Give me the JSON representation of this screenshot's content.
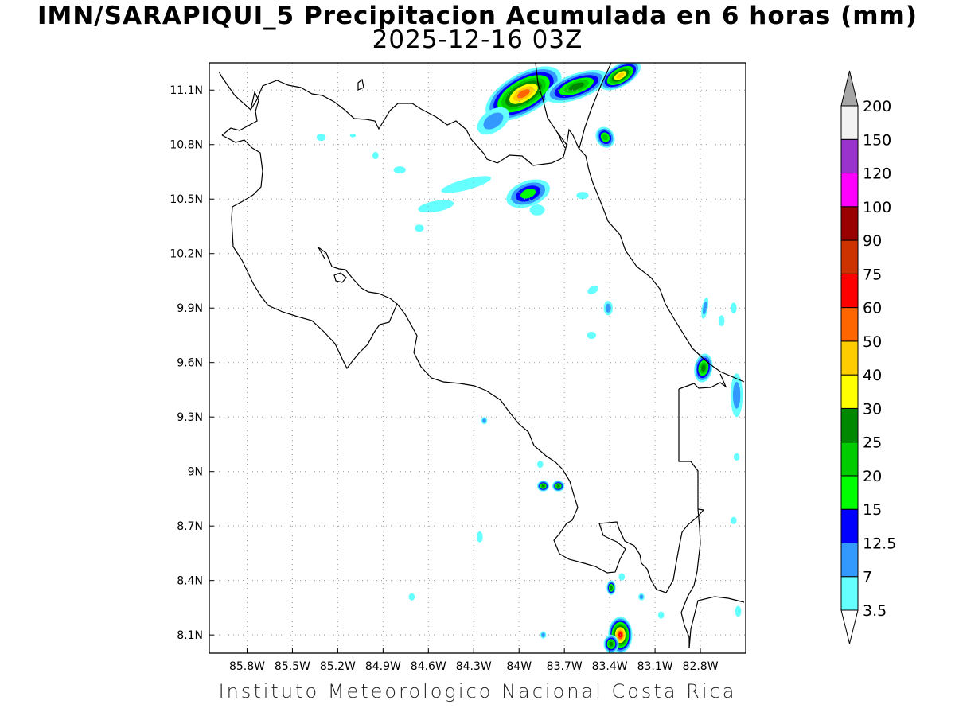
{
  "header": {
    "title_line1": "IMN/SARAPIQUI_5 Precipitacion Acumulada en 6 horas (mm)",
    "title_line2": "2025-12-16 03Z"
  },
  "footer": {
    "credit": "Instituto Meteorologico Nacional Costa Rica"
  },
  "map": {
    "lon_range": [
      -86.05,
      -82.5
    ],
    "lat_range": [
      8.0,
      11.25
    ],
    "lon_ticks": [
      {
        "value": -85.8,
        "label": "85.8W"
      },
      {
        "value": -85.5,
        "label": "85.5W"
      },
      {
        "value": -85.2,
        "label": "85.2W"
      },
      {
        "value": -84.9,
        "label": "84.9W"
      },
      {
        "value": -84.6,
        "label": "84.6W"
      },
      {
        "value": -84.3,
        "label": "84.3W"
      },
      {
        "value": -84.0,
        "label": "84W"
      },
      {
        "value": -83.7,
        "label": "83.7W"
      },
      {
        "value": -83.4,
        "label": "83.4W"
      },
      {
        "value": -83.1,
        "label": "83.1W"
      },
      {
        "value": -82.8,
        "label": "82.8W"
      }
    ],
    "lat_ticks": [
      {
        "value": 11.1,
        "label": "11.1N"
      },
      {
        "value": 10.8,
        "label": "10.8N"
      },
      {
        "value": 10.5,
        "label": "10.5N"
      },
      {
        "value": 10.2,
        "label": "10.2N"
      },
      {
        "value": 9.9,
        "label": "9.9N"
      },
      {
        "value": 9.6,
        "label": "9.6N"
      },
      {
        "value": 9.3,
        "label": "9.3N"
      },
      {
        "value": 9.0,
        "label": "9N"
      },
      {
        "value": 8.7,
        "label": "8.7N"
      },
      {
        "value": 8.4,
        "label": "8.4N"
      },
      {
        "value": 8.1,
        "label": "8.1N"
      }
    ],
    "grid": "dotted"
  },
  "legend": {
    "levels": [
      {
        "label": "3.5",
        "color": "#66ffff"
      },
      {
        "label": "7",
        "color": "#3399ff"
      },
      {
        "label": "12.5",
        "color": "#0000ff"
      },
      {
        "label": "15",
        "color": "#00ff00"
      },
      {
        "label": "20",
        "color": "#00cc00"
      },
      {
        "label": "25",
        "color": "#008800"
      },
      {
        "label": "30",
        "color": "#ffff00"
      },
      {
        "label": "40",
        "color": "#ffcc00"
      },
      {
        "label": "50",
        "color": "#ff6600"
      },
      {
        "label": "60",
        "color": "#ff0000"
      },
      {
        "label": "75",
        "color": "#cc3300"
      },
      {
        "label": "90",
        "color": "#990000"
      },
      {
        "label": "100",
        "color": "#ff00ff"
      },
      {
        "label": "120",
        "color": "#9933cc"
      },
      {
        "label": "150",
        "color": "#f2f2f2"
      },
      {
        "label": "200",
        "color": "#a6a6a6"
      }
    ]
  },
  "precip_cells": [
    {
      "lon": -83.97,
      "lat": 11.08,
      "rx": 0.28,
      "ry": 0.11,
      "rot": -30,
      "level": 8
    },
    {
      "lon": -83.62,
      "lat": 11.12,
      "rx": 0.22,
      "ry": 0.07,
      "rot": -20,
      "level": 5
    },
    {
      "lon": -83.33,
      "lat": 11.18,
      "rx": 0.15,
      "ry": 0.06,
      "rot": -30,
      "level": 7
    },
    {
      "lon": -84.17,
      "lat": 10.93,
      "rx": 0.12,
      "ry": 0.06,
      "rot": -35,
      "level": 1
    },
    {
      "lon": -83.43,
      "lat": 10.84,
      "rx": 0.06,
      "ry": 0.06,
      "rot": -30,
      "level": 4
    },
    {
      "lon": -83.94,
      "lat": 10.53,
      "rx": 0.15,
      "ry": 0.07,
      "rot": -20,
      "level": 3
    },
    {
      "lon": -84.35,
      "lat": 10.58,
      "rx": 0.17,
      "ry": 0.03,
      "rot": -15,
      "level": 0
    },
    {
      "lon": -84.55,
      "lat": 10.46,
      "rx": 0.12,
      "ry": 0.03,
      "rot": -10,
      "level": 0
    },
    {
      "lon": -83.88,
      "lat": 10.44,
      "rx": 0.05,
      "ry": 0.03,
      "rot": 0,
      "level": 0
    },
    {
      "lon": -83.41,
      "lat": 9.9,
      "rx": 0.03,
      "ry": 0.04,
      "rot": 0,
      "level": 1
    },
    {
      "lon": -83.51,
      "lat": 10.0,
      "rx": 0.04,
      "ry": 0.02,
      "rot": -30,
      "level": 0
    },
    {
      "lon": -82.78,
      "lat": 9.57,
      "rx": 0.06,
      "ry": 0.08,
      "rot": 10,
      "level": 5
    },
    {
      "lon": -82.56,
      "lat": 9.42,
      "rx": 0.04,
      "ry": 0.12,
      "rot": 0,
      "level": 1
    },
    {
      "lon": -82.77,
      "lat": 9.9,
      "rx": 0.02,
      "ry": 0.06,
      "rot": 10,
      "level": 1
    },
    {
      "lon": -83.84,
      "lat": 8.92,
      "rx": 0.04,
      "ry": 0.03,
      "rot": 0,
      "level": 5
    },
    {
      "lon": -83.74,
      "lat": 8.92,
      "rx": 0.04,
      "ry": 0.03,
      "rot": 0,
      "level": 5
    },
    {
      "lon": -83.86,
      "lat": 9.04,
      "rx": 0.02,
      "ry": 0.02,
      "rot": 0,
      "level": 0
    },
    {
      "lon": -84.23,
      "lat": 9.28,
      "rx": 0.02,
      "ry": 0.02,
      "rot": 0,
      "level": 1
    },
    {
      "lon": -84.26,
      "lat": 8.64,
      "rx": 0.02,
      "ry": 0.03,
      "rot": 0,
      "level": 0
    },
    {
      "lon": -84.71,
      "lat": 8.31,
      "rx": 0.02,
      "ry": 0.02,
      "rot": 0,
      "level": 0
    },
    {
      "lon": -83.39,
      "lat": 8.36,
      "rx": 0.03,
      "ry": 0.04,
      "rot": 0,
      "level": 5
    },
    {
      "lon": -83.32,
      "lat": 8.42,
      "rx": 0.02,
      "ry": 0.02,
      "rot": 0,
      "level": 0
    },
    {
      "lon": -83.19,
      "lat": 8.31,
      "rx": 0.02,
      "ry": 0.02,
      "rot": 0,
      "level": 1
    },
    {
      "lon": -83.33,
      "lat": 8.1,
      "rx": 0.08,
      "ry": 0.1,
      "rot": 0,
      "level": 9
    },
    {
      "lon": -83.39,
      "lat": 8.05,
      "rx": 0.05,
      "ry": 0.05,
      "rot": 0,
      "level": 5
    },
    {
      "lon": -83.84,
      "lat": 8.1,
      "rx": 0.02,
      "ry": 0.02,
      "rot": 0,
      "level": 1
    },
    {
      "lon": -83.06,
      "lat": 8.21,
      "rx": 0.02,
      "ry": 0.02,
      "rot": 0,
      "level": 0
    },
    {
      "lon": -82.55,
      "lat": 8.23,
      "rx": 0.02,
      "ry": 0.03,
      "rot": 0,
      "level": 0
    },
    {
      "lon": -82.58,
      "lat": 8.73,
      "rx": 0.02,
      "ry": 0.02,
      "rot": 0,
      "level": 0
    },
    {
      "lon": -82.66,
      "lat": 9.83,
      "rx": 0.02,
      "ry": 0.03,
      "rot": 0,
      "level": 0
    },
    {
      "lon": -82.58,
      "lat": 9.9,
      "rx": 0.02,
      "ry": 0.03,
      "rot": 0,
      "level": 0
    },
    {
      "lon": -85.31,
      "lat": 10.84,
      "rx": 0.03,
      "ry": 0.02,
      "rot": 0,
      "level": 0
    },
    {
      "lon": -85.1,
      "lat": 10.85,
      "rx": 0.02,
      "ry": 0.01,
      "rot": 0,
      "level": 0
    },
    {
      "lon": -84.95,
      "lat": 10.74,
      "rx": 0.02,
      "ry": 0.02,
      "rot": 0,
      "level": 0
    },
    {
      "lon": -84.79,
      "lat": 10.66,
      "rx": 0.04,
      "ry": 0.02,
      "rot": 0,
      "level": 0
    },
    {
      "lon": -84.66,
      "lat": 10.34,
      "rx": 0.03,
      "ry": 0.02,
      "rot": 0,
      "level": 0
    },
    {
      "lon": -83.58,
      "lat": 10.52,
      "rx": 0.04,
      "ry": 0.02,
      "rot": 0,
      "level": 0
    },
    {
      "lon": -83.52,
      "lat": 9.75,
      "rx": 0.03,
      "ry": 0.02,
      "rot": 0,
      "level": 0
    },
    {
      "lon": -82.56,
      "lat": 9.08,
      "rx": 0.02,
      "ry": 0.02,
      "rot": 0,
      "level": 0
    }
  ]
}
